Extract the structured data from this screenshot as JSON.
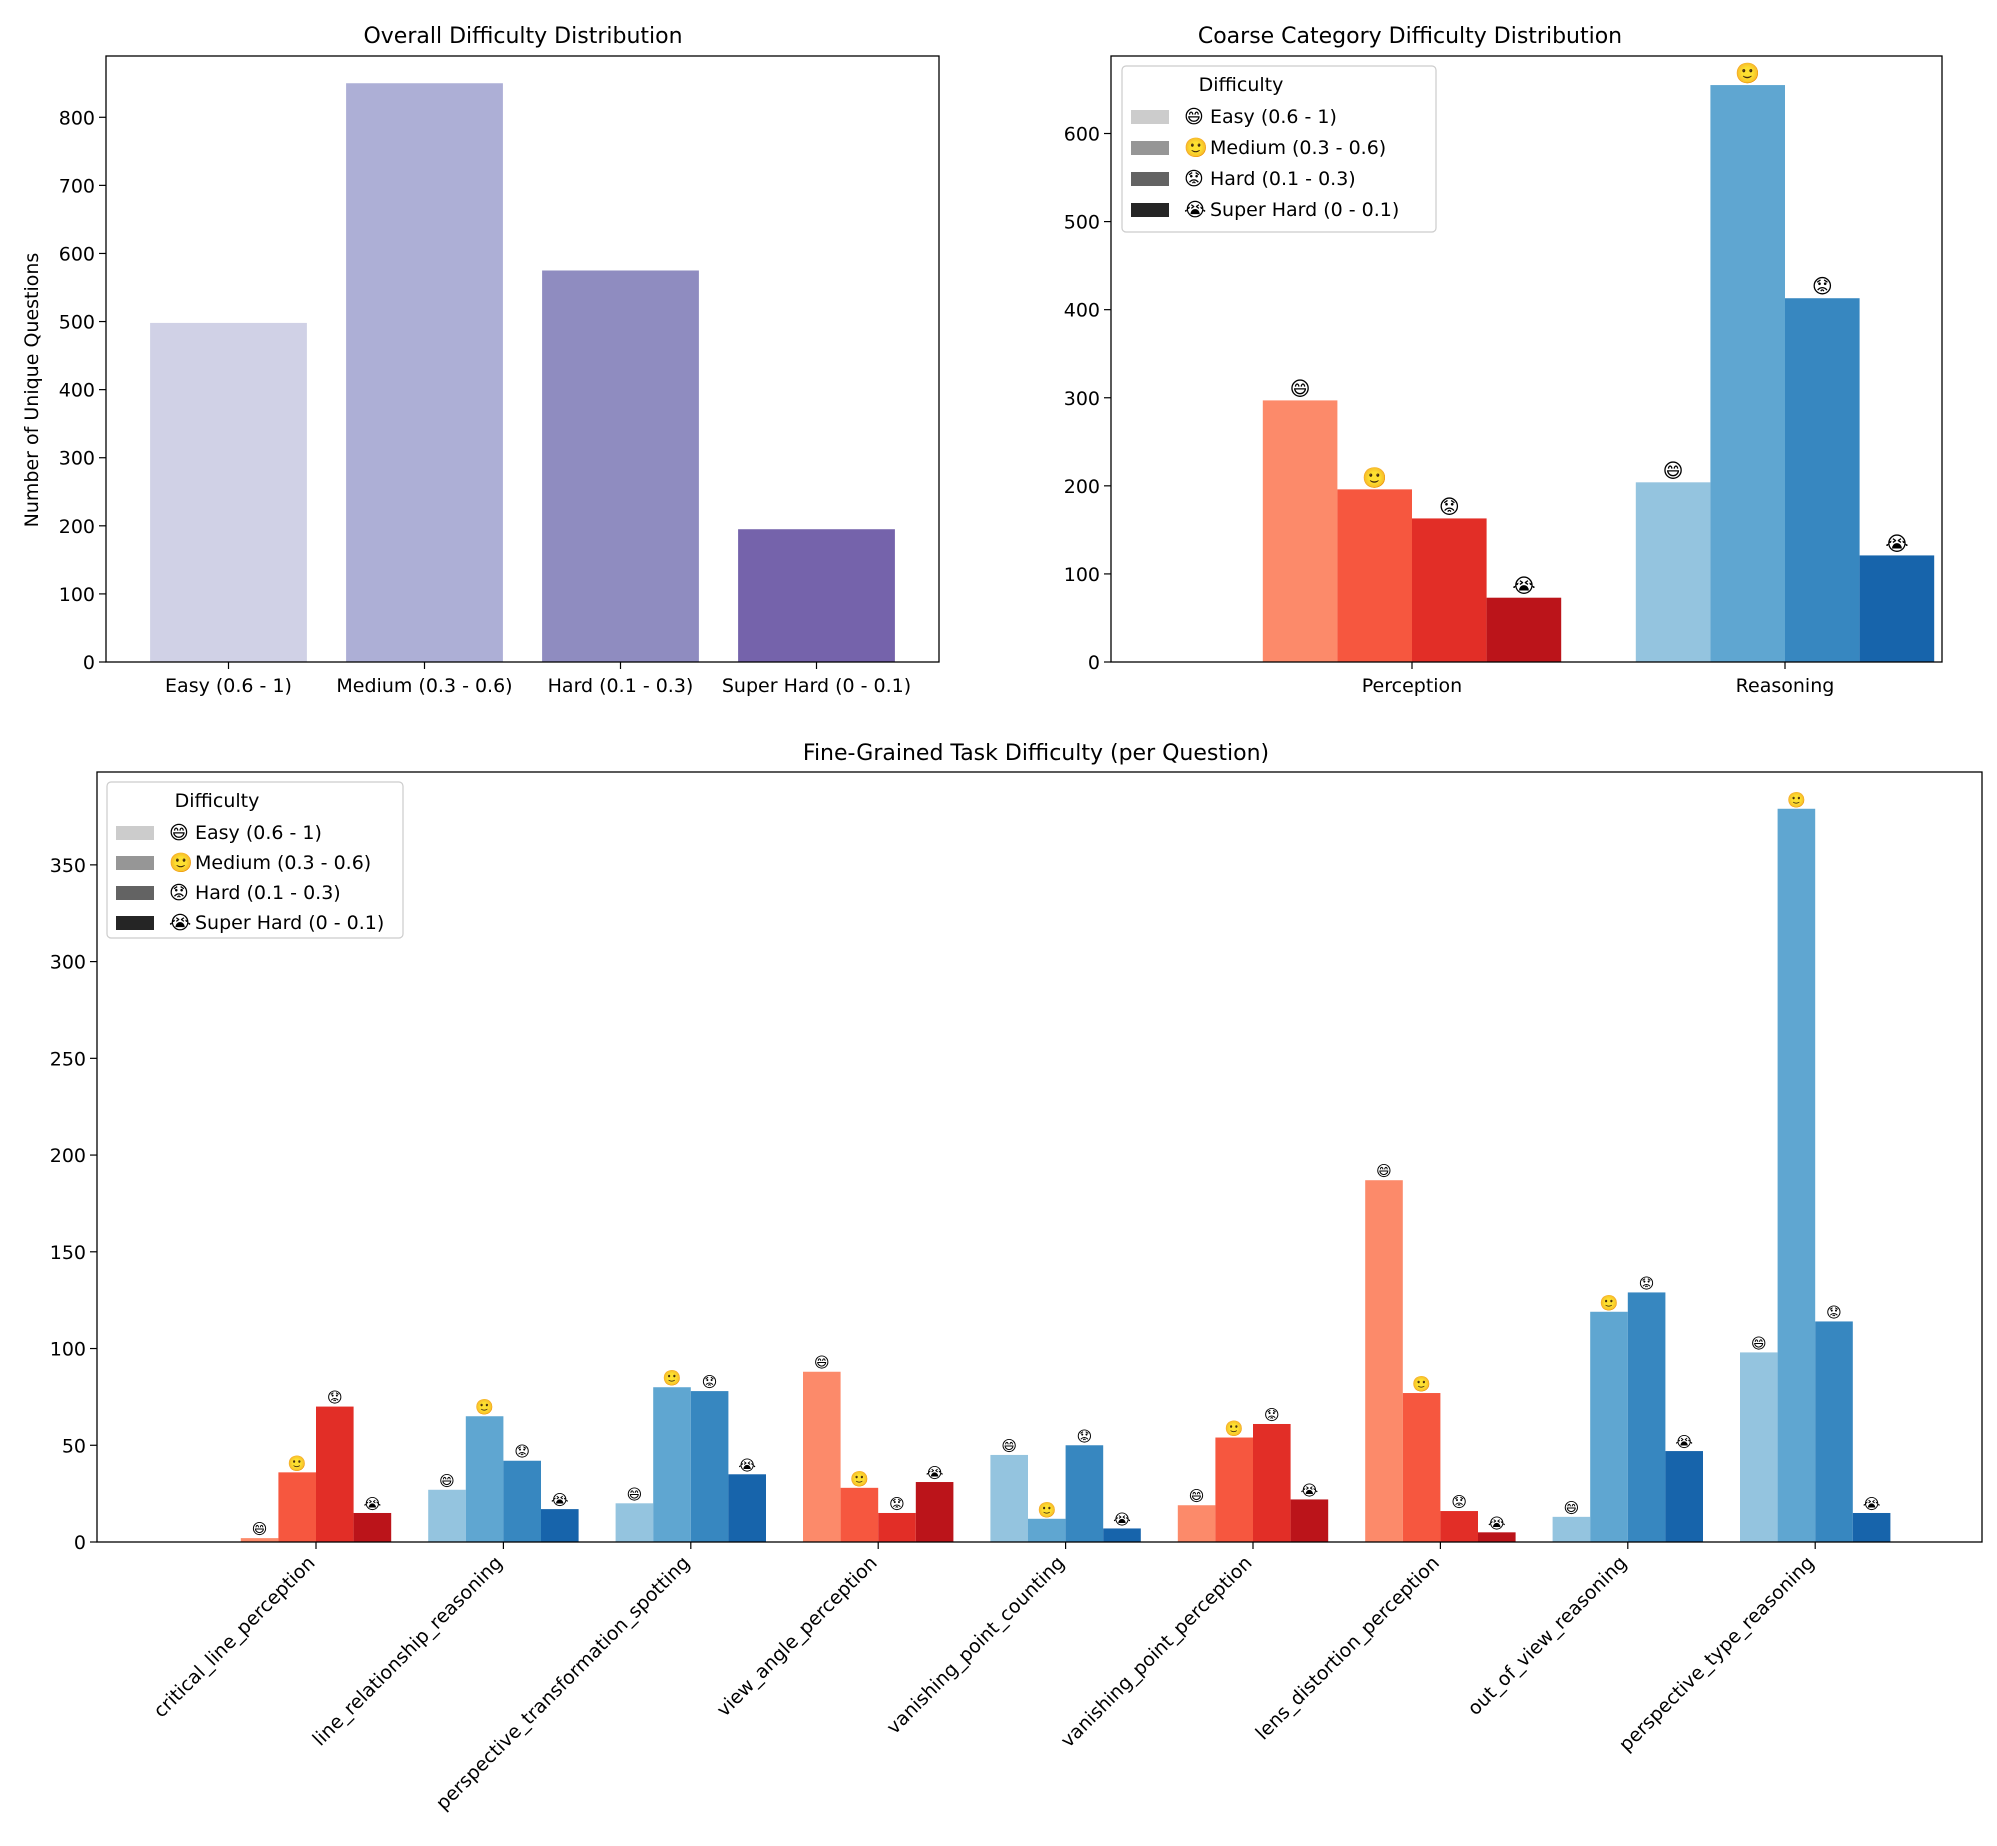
{
  "chart_data": [
    {
      "type": "bar",
      "title": "Overall Difficulty Distribution",
      "xlabel": "",
      "ylabel": "Number of Unique Questions",
      "ylim": [
        0,
        890
      ],
      "yticks": [
        0,
        100,
        200,
        300,
        400,
        500,
        600,
        700,
        800
      ],
      "categories": [
        "Easy (0.6 - 1)",
        "Medium (0.3 - 0.6)",
        "Hard (0.1 - 0.3)",
        "Super Hard (0 - 0.1)"
      ],
      "values": [
        498,
        850,
        575,
        195
      ],
      "colors": [
        "#d0d1e6",
        "#adafd6",
        "#8f8cc0",
        "#7563ab"
      ]
    },
    {
      "type": "bar",
      "title": "Coarse Category Difficulty Distribution",
      "xlabel": "",
      "ylabel": "",
      "ylim": [
        0,
        688
      ],
      "yticks": [
        0,
        100,
        200,
        300,
        400,
        500,
        600
      ],
      "categories": [
        "Perception",
        "Reasoning"
      ],
      "series": [
        {
          "name": "Easy (0.6 - 1)",
          "icon": "😄",
          "values": [
            297,
            204
          ]
        },
        {
          "name": "Medium (0.3 - 0.6)",
          "icon": "🙂",
          "values": [
            196,
            655
          ]
        },
        {
          "name": "Hard (0.1 - 0.3)",
          "icon": "😟",
          "values": [
            163,
            413
          ]
        },
        {
          "name": "Super Hard (0 - 0.1)",
          "icon": "😭",
          "values": [
            73,
            121
          ]
        }
      ],
      "palettes": {
        "Perception": [
          "#fc8a6a",
          "#f6573f",
          "#e22e27",
          "#bb141a"
        ],
        "Reasoning": [
          "#94c4df",
          "#5fa6d1",
          "#3787c0",
          "#1764ab"
        ]
      },
      "legend": {
        "title": "Difficulty",
        "position": "top-left",
        "colors": [
          "#cccccc",
          "#969696",
          "#636363",
          "#252525"
        ]
      }
    },
    {
      "type": "bar",
      "title": "Fine-Grained Task Difficulty (per Question)",
      "xlabel": "",
      "ylabel": "",
      "ylim": [
        0,
        398
      ],
      "yticks": [
        0,
        50,
        100,
        150,
        200,
        250,
        300,
        350
      ],
      "categories": [
        "critical_line_perception",
        "line_relationship_reasoning",
        "perspective_transformation_spotting",
        "view_angle_perception",
        "vanishing_point_counting",
        "vanishing_point_perception",
        "lens_distortion_perception",
        "out_of_view_reasoning",
        "perspective_type_reasoning"
      ],
      "category_group": [
        "Perception",
        "Reasoning",
        "Reasoning",
        "Perception",
        "Reasoning",
        "Perception",
        "Perception",
        "Reasoning",
        "Reasoning"
      ],
      "series": [
        {
          "name": "Easy (0.6 - 1)",
          "icon": "😄",
          "values": [
            2,
            27,
            20,
            88,
            45,
            19,
            187,
            13,
            98
          ]
        },
        {
          "name": "Medium (0.3 - 0.6)",
          "icon": "🙂",
          "values": [
            36,
            65,
            80,
            28,
            12,
            54,
            77,
            119,
            379
          ]
        },
        {
          "name": "Hard (0.1 - 0.3)",
          "icon": "😟",
          "values": [
            70,
            42,
            78,
            15,
            50,
            61,
            16,
            129,
            114
          ]
        },
        {
          "name": "Super Hard (0 - 0.1)",
          "icon": "😭",
          "values": [
            15,
            17,
            35,
            31,
            7,
            22,
            5,
            47,
            15
          ]
        }
      ],
      "legend": {
        "title": "Difficulty",
        "position": "top-left",
        "colors": [
          "#cccccc",
          "#969696",
          "#636363",
          "#252525"
        ]
      }
    }
  ]
}
